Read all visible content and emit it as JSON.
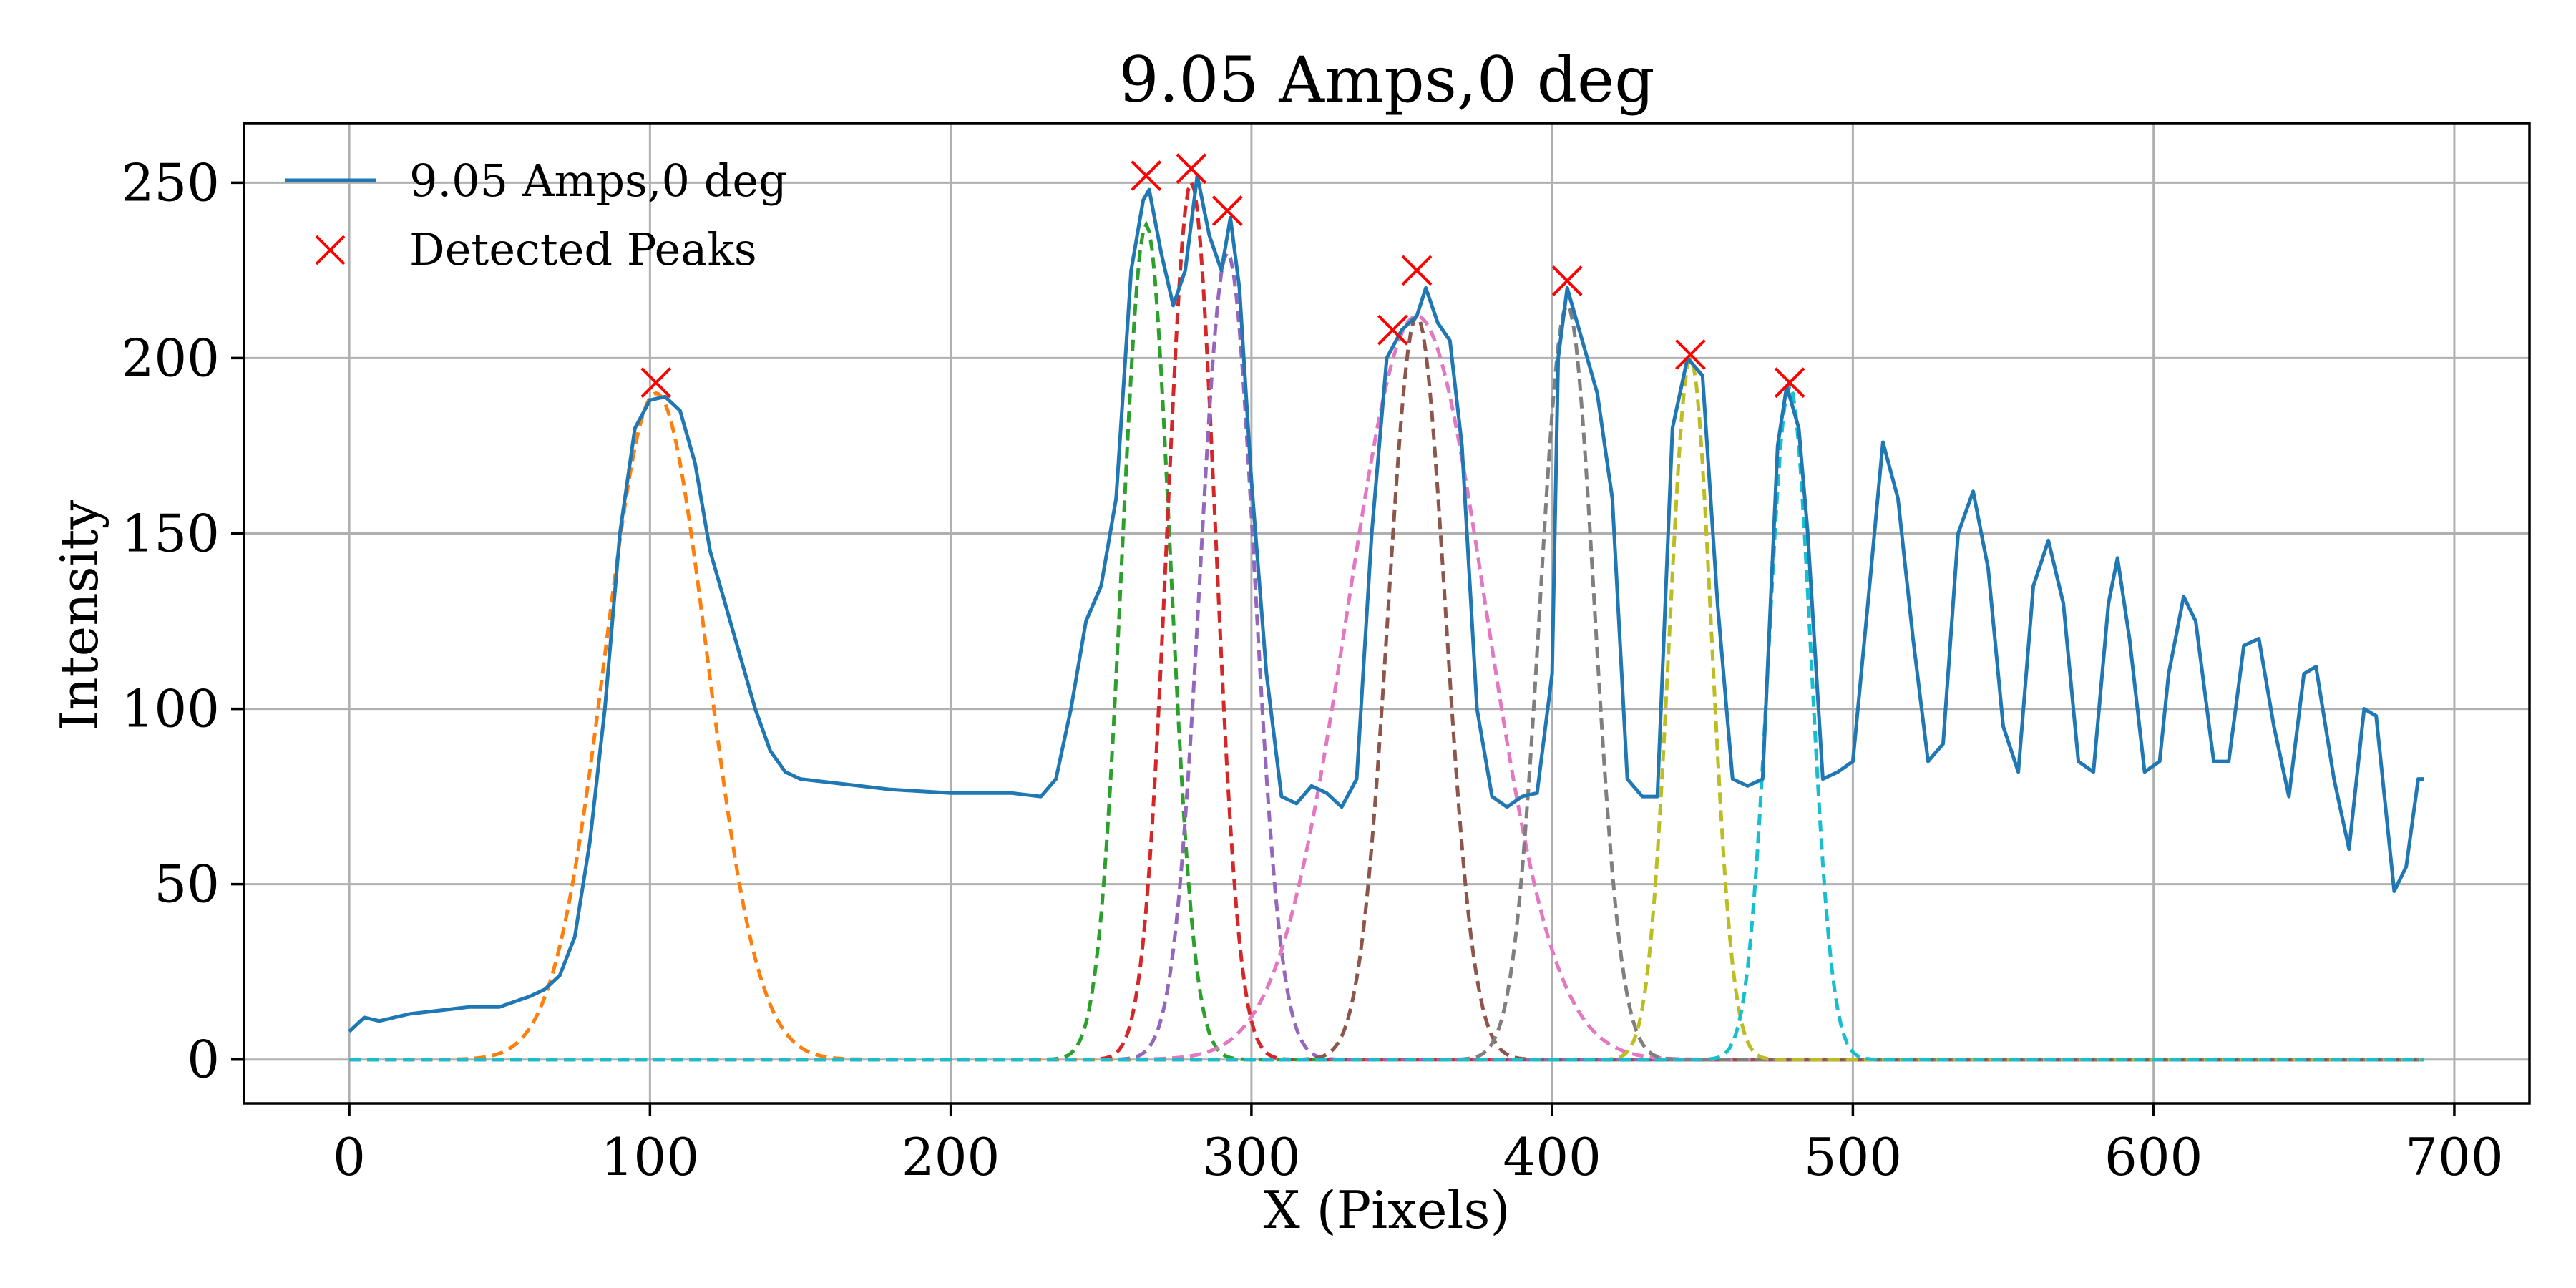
{
  "chart_data": {
    "type": "line",
    "title": "9.05 Amps,0 deg",
    "xlabel": "X (Pixels)",
    "ylabel": "Intensity",
    "xlim": [
      -35,
      725
    ],
    "ylim": [
      -12.5,
      267
    ],
    "xticks": [
      0,
      100,
      200,
      300,
      400,
      500,
      600,
      700
    ],
    "yticks": [
      0,
      50,
      100,
      150,
      200,
      250
    ],
    "grid": true,
    "legend_position": "upper-left",
    "legend": [
      {
        "label": "9.05 Amps,0 deg",
        "kind": "line",
        "color": "#1f77b4"
      },
      {
        "label": "Detected Peaks",
        "kind": "marker-x",
        "color": "#ff0000"
      }
    ],
    "series": [
      {
        "name": "9.05 Amps,0 deg",
        "color": "#1f77b4",
        "points": [
          [
            0,
            8
          ],
          [
            5,
            12
          ],
          [
            10,
            11
          ],
          [
            20,
            13
          ],
          [
            30,
            14
          ],
          [
            40,
            15
          ],
          [
            50,
            15
          ],
          [
            60,
            18
          ],
          [
            65,
            20
          ],
          [
            70,
            24
          ],
          [
            75,
            35
          ],
          [
            80,
            62
          ],
          [
            85,
            100
          ],
          [
            90,
            150
          ],
          [
            95,
            180
          ],
          [
            100,
            188
          ],
          [
            105,
            189
          ],
          [
            110,
            185
          ],
          [
            115,
            170
          ],
          [
            120,
            145
          ],
          [
            125,
            130
          ],
          [
            130,
            115
          ],
          [
            135,
            100
          ],
          [
            140,
            88
          ],
          [
            145,
            82
          ],
          [
            150,
            80
          ],
          [
            160,
            79
          ],
          [
            180,
            77
          ],
          [
            200,
            76
          ],
          [
            220,
            76
          ],
          [
            230,
            75
          ],
          [
            235,
            80
          ],
          [
            240,
            100
          ],
          [
            245,
            125
          ],
          [
            250,
            135
          ],
          [
            255,
            160
          ],
          [
            260,
            225
          ],
          [
            264,
            245
          ],
          [
            266,
            248
          ],
          [
            270,
            230
          ],
          [
            274,
            215
          ],
          [
            278,
            225
          ],
          [
            282,
            252
          ],
          [
            286,
            235
          ],
          [
            290,
            225
          ],
          [
            293,
            240
          ],
          [
            296,
            220
          ],
          [
            300,
            165
          ],
          [
            305,
            110
          ],
          [
            310,
            75
          ],
          [
            315,
            73
          ],
          [
            320,
            78
          ],
          [
            325,
            76
          ],
          [
            330,
            72
          ],
          [
            335,
            80
          ],
          [
            340,
            150
          ],
          [
            345,
            200
          ],
          [
            350,
            208
          ],
          [
            355,
            212
          ],
          [
            358,
            220
          ],
          [
            362,
            210
          ],
          [
            366,
            205
          ],
          [
            370,
            175
          ],
          [
            375,
            100
          ],
          [
            380,
            75
          ],
          [
            385,
            72
          ],
          [
            390,
            75
          ],
          [
            395,
            76
          ],
          [
            400,
            110
          ],
          [
            402,
            200
          ],
          [
            405,
            220
          ],
          [
            410,
            205
          ],
          [
            415,
            190
          ],
          [
            420,
            160
          ],
          [
            425,
            80
          ],
          [
            430,
            75
          ],
          [
            435,
            75
          ],
          [
            440,
            180
          ],
          [
            445,
            200
          ],
          [
            450,
            195
          ],
          [
            455,
            130
          ],
          [
            460,
            80
          ],
          [
            465,
            78
          ],
          [
            470,
            80
          ],
          [
            475,
            175
          ],
          [
            478,
            192
          ],
          [
            482,
            180
          ],
          [
            485,
            150
          ],
          [
            490,
            80
          ],
          [
            495,
            82
          ],
          [
            500,
            85
          ],
          [
            505,
            130
          ],
          [
            510,
            176
          ],
          [
            515,
            160
          ],
          [
            520,
            120
          ],
          [
            525,
            85
          ],
          [
            530,
            90
          ],
          [
            535,
            150
          ],
          [
            540,
            162
          ],
          [
            545,
            140
          ],
          [
            550,
            95
          ],
          [
            555,
            82
          ],
          [
            560,
            135
          ],
          [
            565,
            148
          ],
          [
            570,
            130
          ],
          [
            575,
            85
          ],
          [
            580,
            82
          ],
          [
            585,
            130
          ],
          [
            588,
            143
          ],
          [
            592,
            120
          ],
          [
            597,
            82
          ],
          [
            602,
            85
          ],
          [
            605,
            110
          ],
          [
            610,
            132
          ],
          [
            614,
            125
          ],
          [
            620,
            85
          ],
          [
            625,
            85
          ],
          [
            630,
            118
          ],
          [
            635,
            120
          ],
          [
            640,
            95
          ],
          [
            645,
            75
          ],
          [
            650,
            110
          ],
          [
            654,
            112
          ],
          [
            660,
            80
          ],
          [
            665,
            60
          ],
          [
            670,
            100
          ],
          [
            674,
            98
          ],
          [
            680,
            48
          ],
          [
            684,
            55
          ],
          [
            688,
            80
          ],
          [
            690,
            80
          ]
        ]
      }
    ],
    "peaks": [
      {
        "x": 102,
        "y": 193
      },
      {
        "x": 265,
        "y": 252
      },
      {
        "x": 280,
        "y": 254
      },
      {
        "x": 292,
        "y": 242
      },
      {
        "x": 347,
        "y": 208
      },
      {
        "x": 355,
        "y": 225
      },
      {
        "x": 405,
        "y": 222
      },
      {
        "x": 446,
        "y": 201
      },
      {
        "x": 479,
        "y": 193
      }
    ],
    "fits": [
      {
        "mu": 102,
        "amp": 190,
        "sigma": 17,
        "color": "#ff7f0e"
      },
      {
        "mu": 265,
        "amp": 238,
        "sigma": 8,
        "color": "#2ca02c"
      },
      {
        "mu": 280,
        "amp": 250,
        "sigma": 8,
        "color": "#d62728"
      },
      {
        "mu": 292,
        "amp": 230,
        "sigma": 9,
        "color": "#9467bd"
      },
      {
        "mu": 355,
        "amp": 212,
        "sigma": 9.5,
        "color": "#8c564b"
      },
      {
        "mu": 355,
        "amp": 212,
        "sigma": 23,
        "color": "#e377c2"
      },
      {
        "mu": 405,
        "amp": 215,
        "sigma": 9,
        "color": "#7f7f7f"
      },
      {
        "mu": 446,
        "amp": 200,
        "sigma": 7,
        "color": "#bcbd22"
      },
      {
        "mu": 479,
        "amp": 192,
        "sigma": 7,
        "color": "#17becf"
      }
    ]
  }
}
